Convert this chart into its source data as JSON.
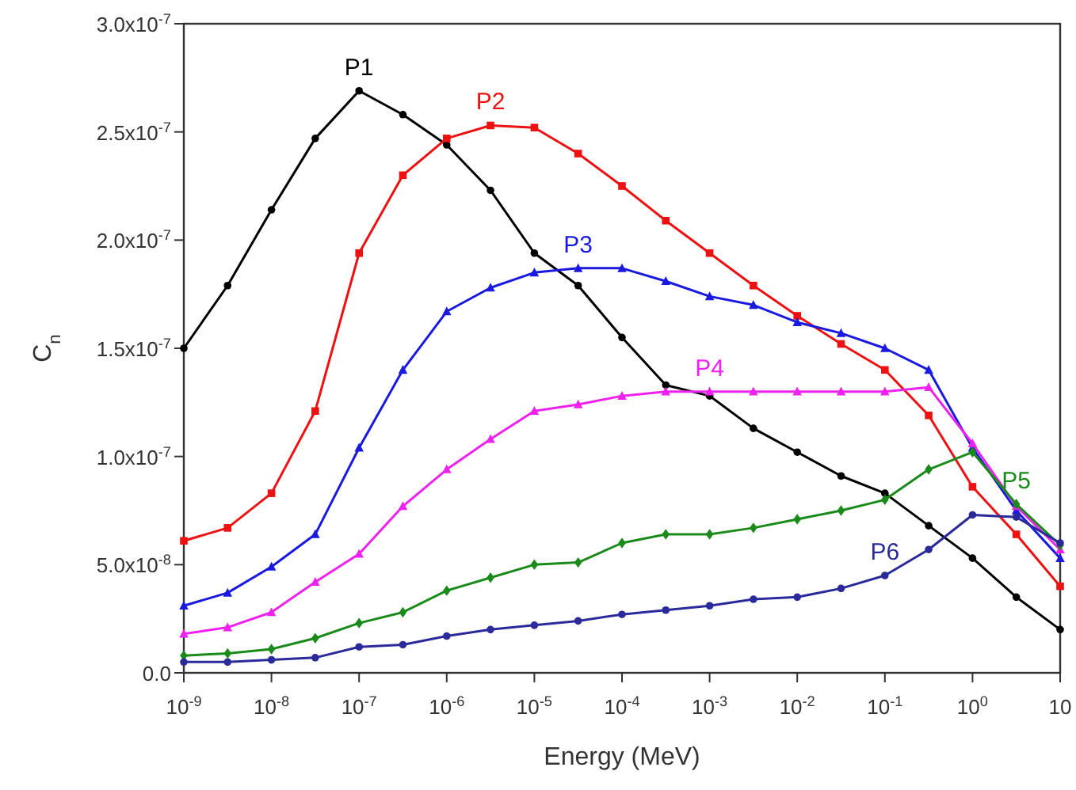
{
  "chart_data": {
    "type": "line",
    "xlabel": "Energy (MeV)",
    "ylabel": "C$_{n}$",
    "log": "x",
    "grid": false,
    "xlim": [
      1e-09,
      10
    ],
    "ylim": [
      0,
      3e-07
    ],
    "xticks": [
      {
        "value": 1e-09,
        "label": "10$^{-9}$"
      },
      {
        "value": 1e-08,
        "label": "10$^{-8}$"
      },
      {
        "value": 1e-07,
        "label": "10$^{-7}$"
      },
      {
        "value": 1e-06,
        "label": "10$^{-6}$"
      },
      {
        "value": 1e-05,
        "label": "10$^{-5}$"
      },
      {
        "value": 0.0001,
        "label": "10$^{-4}$"
      },
      {
        "value": 0.001,
        "label": "10$^{-3}$"
      },
      {
        "value": 0.01,
        "label": "10$^{-2}$"
      },
      {
        "value": 0.1,
        "label": "10$^{-1}$"
      },
      {
        "value": 1,
        "label": "10$^{0}$"
      },
      10
    ],
    "yticks": [
      {
        "value": 0,
        "label": "0.0"
      },
      {
        "value": 5e-08,
        "label": "5.0x10$^{-8}$"
      },
      {
        "value": 1e-07,
        "label": "1.0x10$^{-7}$"
      },
      {
        "value": 1.5e-07,
        "label": "1.5x10$^{-7}$"
      },
      {
        "value": 2e-07,
        "label": "2.0x10$^{-7}$"
      },
      {
        "value": 2.5e-07,
        "label": "2.5x10$^{-7}$"
      },
      {
        "value": 3e-07,
        "label": "3.0x10$^{-7}$"
      }
    ],
    "x": [
      1e-09,
      3.16e-09,
      1e-08,
      3.16e-08,
      1e-07,
      3.16e-07,
      1e-06,
      3.16e-06,
      1e-05,
      3.16e-05,
      0.0001,
      0.000316,
      0.001,
      0.00316,
      0.01,
      0.0316,
      0.1,
      0.316,
      1,
      3.16,
      10
    ],
    "series": [
      {
        "name": "P1",
        "color": "#000000",
        "marker": "circle",
        "values": [
          1.5e-07,
          1.79e-07,
          2.14e-07,
          2.47e-07,
          2.69e-07,
          2.58e-07,
          2.44e-07,
          2.23e-07,
          1.94e-07,
          1.79e-07,
          1.55e-07,
          1.33e-07,
          1.28e-07,
          1.13e-07,
          1.02e-07,
          9.1e-08,
          8.3e-08,
          6.8e-08,
          5.3e-08,
          3.5e-08,
          2e-08
        ]
      },
      {
        "name": "P2",
        "color": "#ee1111",
        "marker": "square",
        "values": [
          6.1e-08,
          6.7e-08,
          8.3e-08,
          1.21e-07,
          1.94e-07,
          2.3e-07,
          2.47e-07,
          2.53e-07,
          2.52e-07,
          2.4e-07,
          2.25e-07,
          2.09e-07,
          1.94e-07,
          1.79e-07,
          1.65e-07,
          1.52e-07,
          1.4e-07,
          1.19e-07,
          8.6e-08,
          6.4e-08,
          4e-08
        ]
      },
      {
        "name": "P3",
        "color": "#1a1adf",
        "marker": "triangle",
        "values": [
          3.1e-08,
          3.7e-08,
          4.9e-08,
          6.4e-08,
          1.04e-07,
          1.4e-07,
          1.67e-07,
          1.78e-07,
          1.85e-07,
          1.87e-07,
          1.87e-07,
          1.81e-07,
          1.74e-07,
          1.7e-07,
          1.62e-07,
          1.57e-07,
          1.5e-07,
          1.4e-07,
          1.04e-07,
          7.5e-08,
          5.3e-08
        ]
      },
      {
        "name": "P4",
        "color": "#ee22ee",
        "marker": "triangle",
        "values": [
          1.8e-08,
          2.1e-08,
          2.8e-08,
          4.2e-08,
          5.5e-08,
          7.7e-08,
          9.4e-08,
          1.08e-07,
          1.21e-07,
          1.24e-07,
          1.28e-07,
          1.3e-07,
          1.3e-07,
          1.3e-07,
          1.3e-07,
          1.3e-07,
          1.3e-07,
          1.32e-07,
          1.06e-07,
          7.7e-08,
          5.7e-08
        ]
      },
      {
        "name": "P5",
        "color": "#1a8a1a",
        "marker": "diamond",
        "values": [
          8e-09,
          9e-09,
          1.1e-08,
          1.6e-08,
          2.3e-08,
          2.8e-08,
          3.8e-08,
          4.4e-08,
          5e-08,
          5.1e-08,
          6e-08,
          6.4e-08,
          6.4e-08,
          6.7e-08,
          7.1e-08,
          7.5e-08,
          8e-08,
          9.4e-08,
          1.02e-07,
          7.8e-08,
          5.9e-08
        ]
      },
      {
        "name": "P6",
        "color": "#2a2a9a",
        "marker": "circle",
        "values": [
          5e-09,
          5e-09,
          6e-09,
          7e-09,
          1.2e-08,
          1.3e-08,
          1.7e-08,
          2e-08,
          2.2e-08,
          2.4e-08,
          2.7e-08,
          2.9e-08,
          3.1e-08,
          3.4e-08,
          3.5e-08,
          3.9e-08,
          4.5e-08,
          5.7e-08,
          7.3e-08,
          7.2e-08,
          6e-08
        ]
      }
    ]
  }
}
